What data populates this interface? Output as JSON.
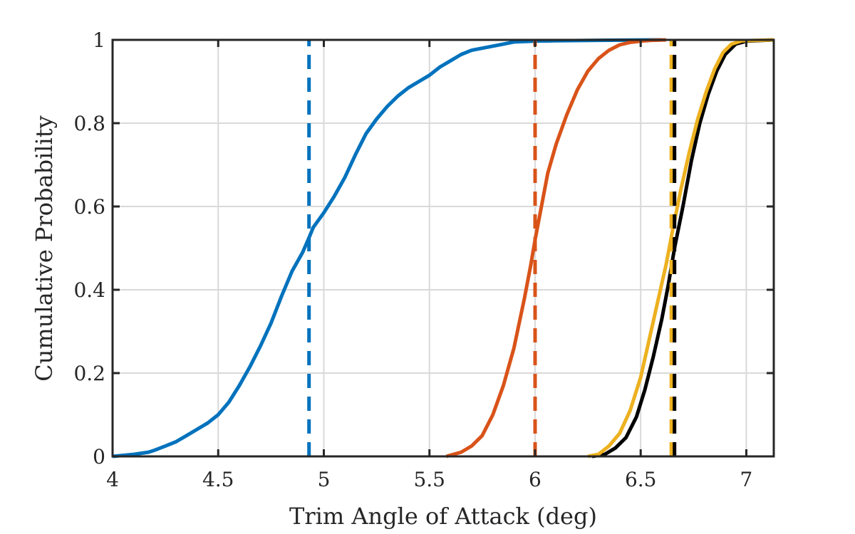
{
  "chart_data": {
    "type": "line",
    "title": "",
    "xlabel": "Trim Angle of Attack (deg)",
    "ylabel": "Cumulative Probability",
    "xlim": [
      4,
      7.13
    ],
    "ylim": [
      0,
      1
    ],
    "xticks": [
      4,
      4.5,
      5,
      5.5,
      6,
      6.5,
      7
    ],
    "xtick_labels": [
      "4",
      "4.5",
      "5",
      "5.5",
      "6",
      "6.5",
      "7"
    ],
    "yticks": [
      0,
      0.2,
      0.4,
      0.6,
      0.8,
      1
    ],
    "ytick_labels": [
      "0",
      "0.2",
      "0.4",
      "0.6",
      "0.8",
      "1"
    ],
    "grid": true,
    "legend": "none",
    "series": [
      {
        "color": "#0072BD",
        "style": "solid",
        "x": [
          4.0,
          4.1,
          4.17,
          4.2,
          4.25,
          4.3,
          4.35,
          4.4,
          4.45,
          4.5,
          4.55,
          4.6,
          4.65,
          4.7,
          4.75,
          4.8,
          4.85,
          4.9,
          4.93,
          4.95,
          5.0,
          5.05,
          5.1,
          5.15,
          5.2,
          5.25,
          5.3,
          5.35,
          5.4,
          5.45,
          5.5,
          5.55,
          5.6,
          5.65,
          5.7,
          5.75,
          5.8,
          5.85,
          5.9,
          6.0,
          6.1,
          6.3,
          6.6
        ],
        "y": [
          0.0,
          0.005,
          0.01,
          0.015,
          0.025,
          0.035,
          0.05,
          0.065,
          0.08,
          0.1,
          0.13,
          0.17,
          0.215,
          0.265,
          0.32,
          0.385,
          0.445,
          0.49,
          0.525,
          0.55,
          0.585,
          0.625,
          0.67,
          0.725,
          0.775,
          0.81,
          0.84,
          0.865,
          0.885,
          0.9,
          0.915,
          0.935,
          0.95,
          0.965,
          0.975,
          0.98,
          0.985,
          0.99,
          0.995,
          0.997,
          0.998,
          0.999,
          1.0
        ]
      },
      {
        "color": "#D95319",
        "style": "solid",
        "x": [
          5.58,
          5.65,
          5.7,
          5.75,
          5.8,
          5.85,
          5.9,
          5.95,
          5.98,
          6.0,
          6.03,
          6.06,
          6.1,
          6.15,
          6.2,
          6.25,
          6.3,
          6.35,
          6.4,
          6.45,
          6.5,
          6.55,
          6.62
        ],
        "y": [
          0.0,
          0.01,
          0.025,
          0.05,
          0.1,
          0.17,
          0.26,
          0.38,
          0.46,
          0.52,
          0.6,
          0.68,
          0.75,
          0.82,
          0.88,
          0.925,
          0.955,
          0.975,
          0.988,
          0.994,
          0.997,
          0.999,
          1.0
        ]
      },
      {
        "color": "#000000",
        "style": "solid",
        "x": [
          6.27,
          6.33,
          6.38,
          6.43,
          6.48,
          6.52,
          6.56,
          6.6,
          6.63,
          6.66,
          6.7,
          6.74,
          6.78,
          6.82,
          6.86,
          6.9,
          6.95,
          7.0,
          7.13
        ],
        "y": [
          0.0,
          0.005,
          0.02,
          0.045,
          0.095,
          0.16,
          0.24,
          0.33,
          0.41,
          0.5,
          0.6,
          0.71,
          0.8,
          0.87,
          0.925,
          0.965,
          0.99,
          0.997,
          1.0
        ]
      },
      {
        "color": "#EDB120",
        "style": "solid",
        "x": [
          6.25,
          6.3,
          6.35,
          6.4,
          6.45,
          6.5,
          6.54,
          6.58,
          6.62,
          6.65,
          6.69,
          6.73,
          6.77,
          6.81,
          6.85,
          6.89,
          6.93,
          6.98,
          7.13
        ],
        "y": [
          0.0,
          0.005,
          0.025,
          0.055,
          0.11,
          0.19,
          0.28,
          0.37,
          0.46,
          0.54,
          0.64,
          0.73,
          0.81,
          0.875,
          0.93,
          0.97,
          0.99,
          0.998,
          1.0
        ]
      },
      {
        "color": "#0072BD",
        "style": "dashed",
        "x": [
          4.93,
          4.93
        ],
        "y": [
          0,
          1
        ]
      },
      {
        "color": "#D95319",
        "style": "dashed",
        "x": [
          6.0,
          6.0
        ],
        "y": [
          0,
          1
        ]
      },
      {
        "color": "#EDB120",
        "style": "dashed",
        "x": [
          6.645,
          6.645
        ],
        "y": [
          0,
          1
        ]
      },
      {
        "color": "#000000",
        "style": "dashed",
        "x": [
          6.66,
          6.66
        ],
        "y": [
          0,
          1
        ]
      }
    ]
  }
}
